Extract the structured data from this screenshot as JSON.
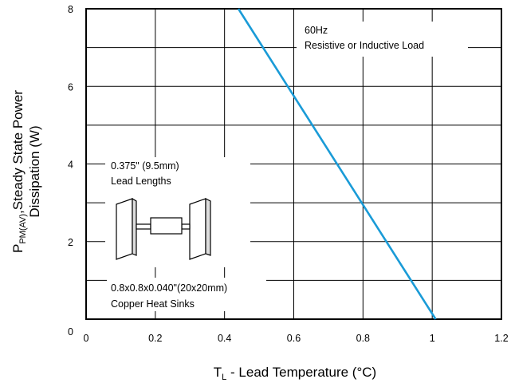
{
  "chart_data": {
    "type": "line",
    "title": "",
    "xlabel": {
      "main": "T",
      "sub": "L",
      "rest": " - Lead Temperature (°C)"
    },
    "ylabel": {
      "line1_main": "P",
      "line1_sub": "PM(AV)",
      "line1_rest": ",Steady State Power",
      "line2": "Dissipation (W)"
    },
    "xlim": [
      0,
      1.2
    ],
    "ylim": [
      0,
      8
    ],
    "x_ticks": [
      0,
      0.2,
      0.4,
      0.6,
      0.8,
      1,
      1.2
    ],
    "x_tick_labels": [
      "0",
      "0.2",
      "0.4",
      "0.6",
      "0.8",
      "1",
      "1.2"
    ],
    "y_ticks": [
      0,
      2,
      4,
      6,
      8
    ],
    "y_tick_labels": [
      "0",
      "2",
      "4",
      "6",
      "8"
    ],
    "grid": true,
    "series": [
      {
        "color": "#1a9bd7",
        "x": [
          0.44,
          1.01
        ],
        "y": [
          8,
          0
        ]
      }
    ],
    "annotations": {
      "top_line1": "60Hz",
      "top_line2": "Resistive or Inductive Load",
      "lead_line1": "0.375\" (9.5mm)",
      "lead_line2": "Lead Lengths",
      "sink_line1": "0.8x0.8x0.040\"(20x20mm)",
      "sink_line2": "Copper Heat Sinks"
    }
  }
}
